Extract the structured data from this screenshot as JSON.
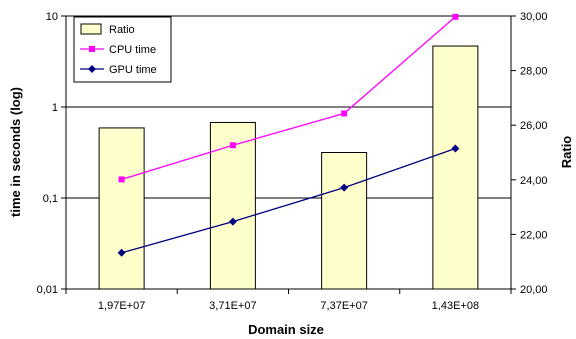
{
  "chart_data": {
    "type": "bar+line",
    "categories": [
      "1,97E+07",
      "3,71E+07",
      "7,37E+07",
      "1,43E+08"
    ],
    "xlabel": "Domain size",
    "ylabel_left": "time in seconds (log)",
    "ylabel_right": "Ratio",
    "left_axis": {
      "scale": "log",
      "ylim": [
        0.01,
        10
      ],
      "ticks": [
        "0,01",
        "0,1",
        "1",
        "10"
      ],
      "tick_values": [
        0.01,
        0.1,
        1,
        10
      ]
    },
    "right_axis": {
      "scale": "linear",
      "ylim": [
        20,
        30
      ],
      "ticks": [
        "20,00",
        "22,00",
        "24,00",
        "26,00",
        "28,00",
        "30,00"
      ],
      "tick_values": [
        20,
        22,
        24,
        26,
        28,
        30
      ]
    },
    "grid": "horizontal major gridlines",
    "legend_position": "top-left",
    "series": [
      {
        "name": "Ratio",
        "kind": "bar",
        "axis": "right",
        "color": "#ffffcc",
        "values": [
          25.9,
          26.1,
          25.0,
          28.9
        ]
      },
      {
        "name": "CPU time",
        "kind": "line",
        "axis": "left",
        "color": "#ff00ff",
        "marker": "square",
        "values": [
          0.16,
          0.38,
          0.85,
          9.8
        ]
      },
      {
        "name": "GPU time",
        "kind": "line",
        "axis": "left",
        "color": "#000080",
        "marker": "diamond",
        "values": [
          0.025,
          0.055,
          0.13,
          0.35
        ]
      }
    ]
  }
}
